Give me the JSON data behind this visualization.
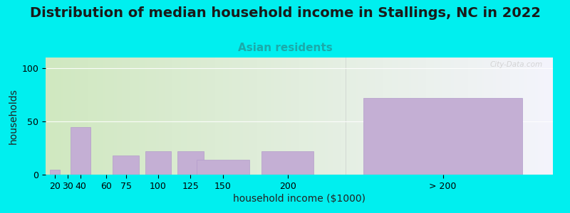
{
  "title": "Distribution of median household income in Stallings, NC in 2022",
  "subtitle": "Asian residents",
  "xlabel": "household income ($1000)",
  "ylabel": "households",
  "bar_labels": [
    "20",
    "30",
    "40",
    "60",
    "75",
    "100",
    "125",
    "150",
    "200",
    "> 200"
  ],
  "bar_values": [
    5,
    0,
    45,
    0,
    18,
    22,
    22,
    14,
    22,
    72
  ],
  "bar_color": "#c4afd4",
  "bar_edge_color": "#b39cca",
  "background_outer": "#00efef",
  "background_plot_left": "#d0e8c0",
  "background_plot_right": "#f4f4fc",
  "ylim": [
    0,
    110
  ],
  "yticks": [
    0,
    50,
    100
  ],
  "title_fontsize": 14,
  "subtitle_fontsize": 11,
  "subtitle_color": "#1aaaaa",
  "axis_label_fontsize": 10,
  "tick_fontsize": 9,
  "watermark": "City-Data.com",
  "bar_centers": [
    20,
    30,
    40,
    60,
    75,
    100,
    125,
    150,
    200,
    320
  ],
  "bar_widths": [
    9,
    9,
    18,
    14,
    23,
    23,
    23,
    46,
    46,
    140
  ]
}
